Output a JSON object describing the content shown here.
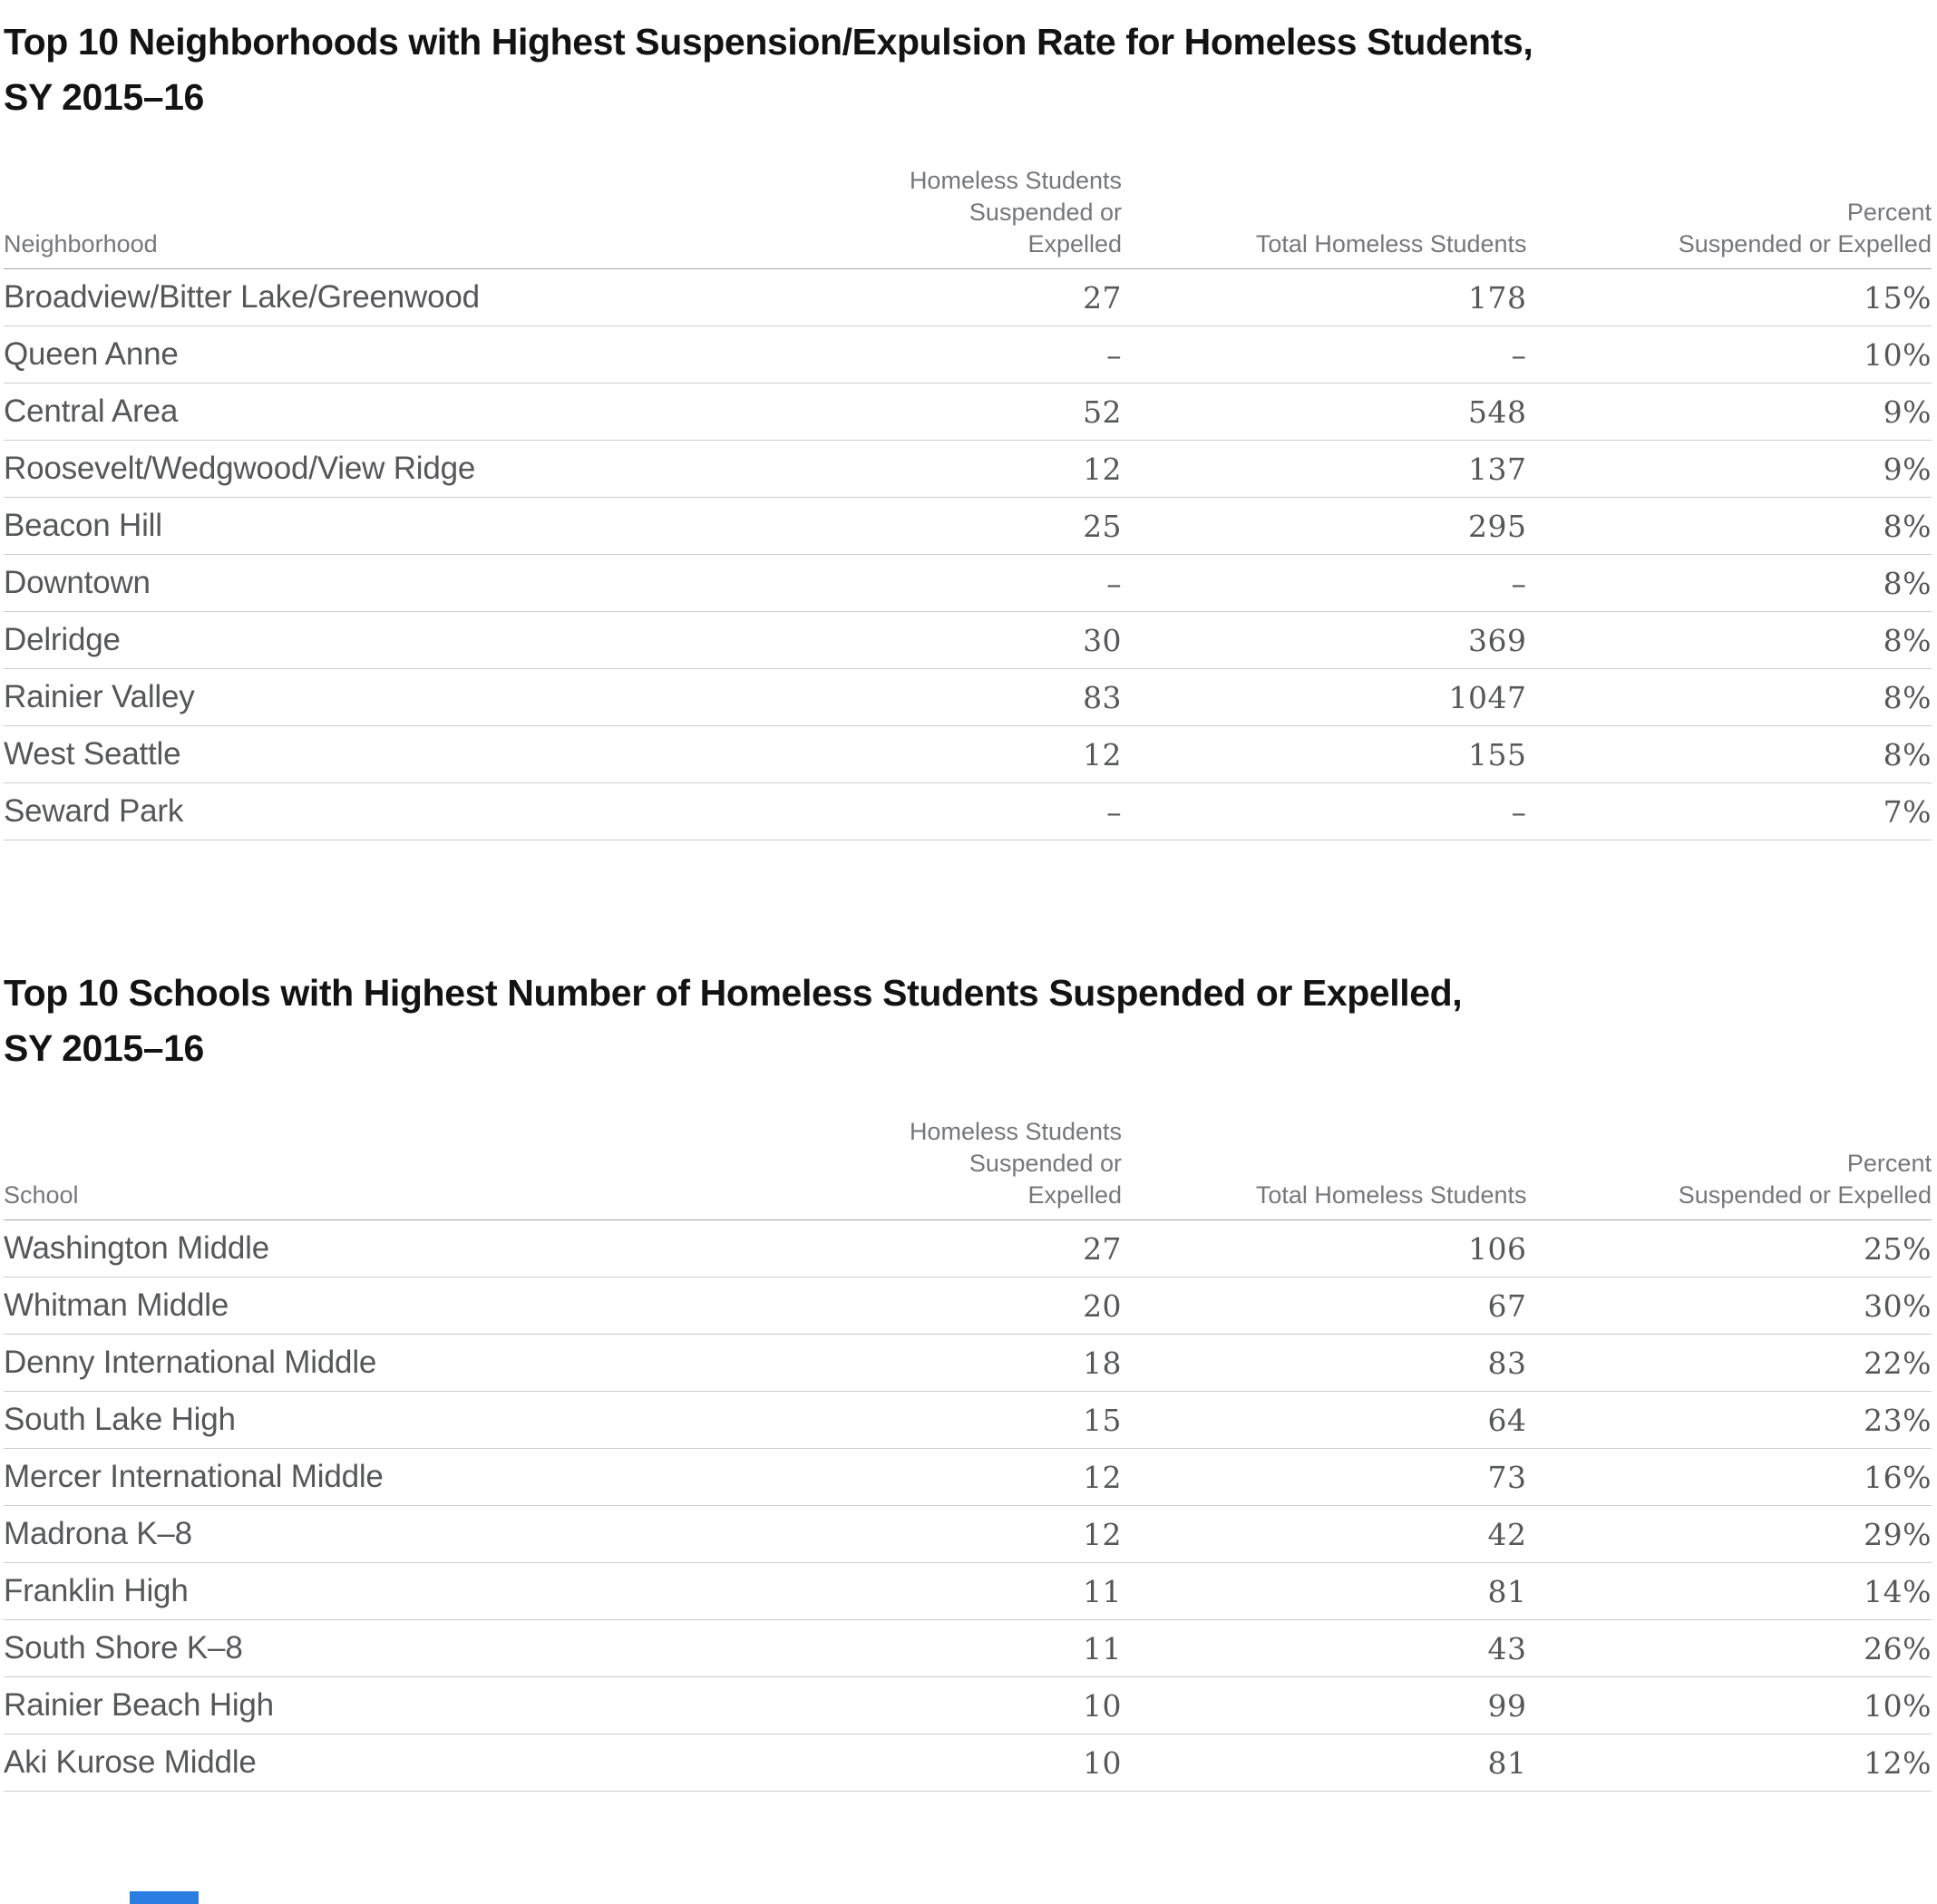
{
  "accent_color": "#2a7de1",
  "empty_marker": "–",
  "tables": [
    {
      "title": [
        "Top 10 Neighborhoods with Highest Suspension/Expulsion Rate for Homeless Students,",
        "SY 2015–16"
      ],
      "headers": {
        "entity": "Neighborhood",
        "suspended": [
          "Homeless Students",
          "Suspended or Expelled"
        ],
        "total": "Total Homeless Students",
        "percent": [
          "Percent",
          "Suspended or Expelled"
        ]
      },
      "rows": [
        {
          "name": "Broadview/Bitter Lake/Greenwood",
          "suspended": "27",
          "total": "178",
          "percent": "15%"
        },
        {
          "name": "Queen Anne",
          "suspended": "–",
          "total": "–",
          "percent": "10%"
        },
        {
          "name": "Central Area",
          "suspended": "52",
          "total": "548",
          "percent": "9%"
        },
        {
          "name": "Roosevelt/Wedgwood/View Ridge",
          "suspended": "12",
          "total": "137",
          "percent": "9%"
        },
        {
          "name": "Beacon Hill",
          "suspended": "25",
          "total": "295",
          "percent": "8%"
        },
        {
          "name": "Downtown",
          "suspended": "–",
          "total": "–",
          "percent": "8%"
        },
        {
          "name": "Delridge",
          "suspended": "30",
          "total": "369",
          "percent": "8%"
        },
        {
          "name": "Rainier Valley",
          "suspended": "83",
          "total": "1047",
          "percent": "8%"
        },
        {
          "name": "West Seattle",
          "suspended": "12",
          "total": "155",
          "percent": "8%"
        },
        {
          "name": "Seward Park",
          "suspended": "–",
          "total": "–",
          "percent": "7%"
        }
      ]
    },
    {
      "title": [
        "Top 10 Schools with Highest Number of Homeless Students Suspended or Expelled,",
        "SY 2015–16"
      ],
      "headers": {
        "entity": "School",
        "suspended": [
          "Homeless Students",
          "Suspended or Expelled"
        ],
        "total": "Total Homeless Students",
        "percent": [
          "Percent",
          "Suspended or Expelled"
        ]
      },
      "rows": [
        {
          "name": "Washington Middle",
          "suspended": "27",
          "total": "106",
          "percent": "25%"
        },
        {
          "name": "Whitman Middle",
          "suspended": "20",
          "total": "67",
          "percent": "30%"
        },
        {
          "name": "Denny International Middle",
          "suspended": "18",
          "total": "83",
          "percent": "22%"
        },
        {
          "name": "South Lake High",
          "suspended": "15",
          "total": "64",
          "percent": "23%"
        },
        {
          "name": "Mercer International Middle",
          "suspended": "12",
          "total": "73",
          "percent": "16%"
        },
        {
          "name": "Madrona K–8",
          "suspended": "12",
          "total": "42",
          "percent": "29%"
        },
        {
          "name": "Franklin High",
          "suspended": "11",
          "total": "81",
          "percent": "14%"
        },
        {
          "name": "South Shore K–8",
          "suspended": "11",
          "total": "43",
          "percent": "26%"
        },
        {
          "name": "Rainier Beach High",
          "suspended": "10",
          "total": "99",
          "percent": "10%"
        },
        {
          "name": "Aki Kurose Middle",
          "suspended": "10",
          "total": "81",
          "percent": "12%"
        }
      ]
    }
  ],
  "chart_data": [
    {
      "type": "table",
      "title": "Top 10 Neighborhoods with Highest Suspension/Expulsion Rate for Homeless Students, SY 2015–16",
      "columns": [
        "Neighborhood",
        "Homeless Students Suspended or Expelled",
        "Total Homeless Students",
        "Percent Suspended or Expelled"
      ],
      "rows": [
        [
          "Broadview/Bitter Lake/Greenwood",
          27,
          178,
          "15%"
        ],
        [
          "Queen Anne",
          null,
          null,
          "10%"
        ],
        [
          "Central Area",
          52,
          548,
          "9%"
        ],
        [
          "Roosevelt/Wedgwood/View Ridge",
          12,
          137,
          "9%"
        ],
        [
          "Beacon Hill",
          25,
          295,
          "8%"
        ],
        [
          "Downtown",
          null,
          null,
          "8%"
        ],
        [
          "Delridge",
          30,
          369,
          "8%"
        ],
        [
          "Rainier Valley",
          83,
          1047,
          "8%"
        ],
        [
          "West Seattle",
          12,
          155,
          "8%"
        ],
        [
          "Seward Park",
          null,
          null,
          "7%"
        ]
      ]
    },
    {
      "type": "table",
      "title": "Top 10 Schools with Highest Number of Homeless Students Suspended or Expelled, SY 2015–16",
      "columns": [
        "School",
        "Homeless Students Suspended or Expelled",
        "Total Homeless Students",
        "Percent Suspended or Expelled"
      ],
      "rows": [
        [
          "Washington Middle",
          27,
          106,
          "25%"
        ],
        [
          "Whitman Middle",
          20,
          67,
          "30%"
        ],
        [
          "Denny International Middle",
          18,
          83,
          "22%"
        ],
        [
          "South Lake High",
          15,
          64,
          "23%"
        ],
        [
          "Mercer International Middle",
          12,
          73,
          "16%"
        ],
        [
          "Madrona K–8",
          12,
          42,
          "29%"
        ],
        [
          "Franklin High",
          11,
          81,
          "14%"
        ],
        [
          "South Shore K–8",
          11,
          43,
          "26%"
        ],
        [
          "Rainier Beach High",
          10,
          99,
          "10%"
        ],
        [
          "Aki Kurose Middle",
          10,
          81,
          "12%"
        ]
      ]
    }
  ]
}
